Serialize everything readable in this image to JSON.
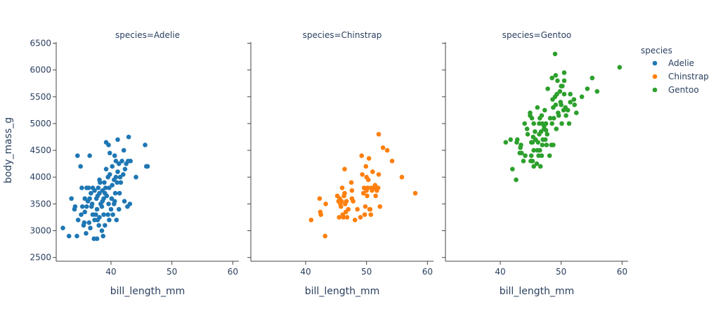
{
  "chart_data": {
    "type": "scatter",
    "facet_by": "species",
    "xlabel": "bill_length_mm",
    "ylabel": "body_mass_g",
    "xlim": [
      31,
      61
    ],
    "ylim": [
      2430,
      6520
    ],
    "xticks": [
      40,
      50,
      60
    ],
    "yticks": [
      2500,
      3000,
      3500,
      4000,
      4500,
      5000,
      5500,
      6000,
      6500
    ],
    "grid": false,
    "legend": {
      "title": "species",
      "placement": "right"
    },
    "panels": [
      {
        "title": "species=Adelie",
        "name": "Adelie",
        "color": "#1f77b4",
        "points": [
          [
            32.1,
            3050
          ],
          [
            33.1,
            2900
          ],
          [
            33.5,
            3600
          ],
          [
            34.0,
            3400
          ],
          [
            34.1,
            3450
          ],
          [
            34.4,
            2900
          ],
          [
            34.5,
            4400
          ],
          [
            34.6,
            3200
          ],
          [
            35.0,
            4200
          ],
          [
            35.1,
            3300
          ],
          [
            35.2,
            3800
          ],
          [
            35.3,
            3450
          ],
          [
            35.5,
            3100
          ],
          [
            35.6,
            3150
          ],
          [
            35.7,
            3350
          ],
          [
            35.7,
            3600
          ],
          [
            35.9,
            2950
          ],
          [
            36.0,
            3450
          ],
          [
            36.0,
            3800
          ],
          [
            36.2,
            3550
          ],
          [
            36.3,
            3800
          ],
          [
            36.4,
            3150
          ],
          [
            36.5,
            3600
          ],
          [
            36.5,
            4400
          ],
          [
            36.6,
            3050
          ],
          [
            36.7,
            3700
          ],
          [
            36.8,
            3450
          ],
          [
            36.9,
            3500
          ],
          [
            37.0,
            3300
          ],
          [
            37.0,
            3800
          ],
          [
            37.2,
            2850
          ],
          [
            37.3,
            3200
          ],
          [
            37.3,
            3750
          ],
          [
            37.5,
            3300
          ],
          [
            37.6,
            3600
          ],
          [
            37.7,
            2850
          ],
          [
            37.7,
            3400
          ],
          [
            37.8,
            3200
          ],
          [
            37.8,
            3650
          ],
          [
            37.9,
            3800
          ],
          [
            38.0,
            3100
          ],
          [
            38.1,
            3250
          ],
          [
            38.1,
            3700
          ],
          [
            38.1,
            3950
          ],
          [
            38.2,
            3900
          ],
          [
            38.3,
            3500
          ],
          [
            38.5,
            3000
          ],
          [
            38.5,
            3450
          ],
          [
            38.6,
            3550
          ],
          [
            38.6,
            3750
          ],
          [
            38.7,
            2900
          ],
          [
            38.8,
            3300
          ],
          [
            38.8,
            3600
          ],
          [
            38.9,
            3900
          ],
          [
            39.0,
            3100
          ],
          [
            39.0,
            3700
          ],
          [
            39.1,
            3800
          ],
          [
            39.2,
            4150
          ],
          [
            39.2,
            4650
          ],
          [
            39.3,
            3650
          ],
          [
            39.5,
            3300
          ],
          [
            39.5,
            4000
          ],
          [
            39.6,
            3500
          ],
          [
            39.6,
            4600
          ],
          [
            39.7,
            3200
          ],
          [
            39.7,
            3800
          ],
          [
            39.8,
            4450
          ],
          [
            39.8,
            4050
          ],
          [
            40.0,
            3400
          ],
          [
            40.1,
            3600
          ],
          [
            40.2,
            3850
          ],
          [
            40.2,
            4200
          ],
          [
            40.3,
            3300
          ],
          [
            40.5,
            3500
          ],
          [
            40.5,
            3950
          ],
          [
            40.6,
            3550
          ],
          [
            40.6,
            4400
          ],
          [
            40.7,
            3700
          ],
          [
            40.8,
            4000
          ],
          [
            40.8,
            4300
          ],
          [
            40.9,
            3200
          ],
          [
            41.0,
            3900
          ],
          [
            41.1,
            4100
          ],
          [
            41.1,
            4700
          ],
          [
            41.3,
            3400
          ],
          [
            41.3,
            4250
          ],
          [
            41.4,
            3700
          ],
          [
            41.5,
            4000
          ],
          [
            41.6,
            3900
          ],
          [
            41.8,
            4300
          ],
          [
            42.0,
            4050
          ],
          [
            42.1,
            4500
          ],
          [
            42.2,
            3550
          ],
          [
            42.3,
            4150
          ],
          [
            42.5,
            4250
          ],
          [
            42.7,
            3450
          ],
          [
            42.8,
            4300
          ],
          [
            42.9,
            4750
          ],
          [
            43.1,
            3500
          ],
          [
            43.2,
            4300
          ],
          [
            44.1,
            4000
          ],
          [
            45.6,
            4600
          ],
          [
            45.8,
            4200
          ],
          [
            46.0,
            4200
          ]
        ]
      },
      {
        "title": "species=Chinstrap",
        "name": "Chinstrap",
        "color": "#ff7f0e",
        "points": [
          [
            40.9,
            3200
          ],
          [
            42.3,
            3600
          ],
          [
            42.4,
            3350
          ],
          [
            42.5,
            3300
          ],
          [
            43.2,
            2900
          ],
          [
            43.3,
            3500
          ],
          [
            45.2,
            3650
          ],
          [
            45.4,
            3550
          ],
          [
            45.5,
            3250
          ],
          [
            45.6,
            3600
          ],
          [
            45.7,
            3500
          ],
          [
            45.8,
            3450
          ],
          [
            45.9,
            3550
          ],
          [
            46.0,
            3800
          ],
          [
            46.1,
            3300
          ],
          [
            46.2,
            3250
          ],
          [
            46.3,
            3650
          ],
          [
            46.4,
            3700
          ],
          [
            46.5,
            3500
          ],
          [
            46.6,
            3350
          ],
          [
            46.7,
            3550
          ],
          [
            46.8,
            3250
          ],
          [
            47.0,
            3400
          ],
          [
            47.5,
            3900
          ],
          [
            47.6,
            3600
          ],
          [
            47.6,
            3750
          ],
          [
            47.8,
            3550
          ],
          [
            48.1,
            3200
          ],
          [
            48.5,
            3400
          ],
          [
            49.0,
            3250
          ],
          [
            49.5,
            3700
          ],
          [
            49.6,
            3800
          ],
          [
            49.7,
            3300
          ],
          [
            49.8,
            3450
          ],
          [
            50.0,
            3750
          ],
          [
            50.0,
            4000
          ],
          [
            50.1,
            3650
          ],
          [
            50.2,
            3800
          ],
          [
            50.3,
            3950
          ],
          [
            50.5,
            3400
          ],
          [
            50.6,
            3400
          ],
          [
            50.7,
            3300
          ],
          [
            50.8,
            3800
          ],
          [
            50.9,
            3750
          ],
          [
            51.0,
            4100
          ],
          [
            51.3,
            3800
          ],
          [
            51.4,
            3850
          ],
          [
            51.5,
            3650
          ],
          [
            51.7,
            3750
          ],
          [
            51.9,
            3800
          ],
          [
            52.0,
            4050
          ],
          [
            52.0,
            4800
          ],
          [
            52.2,
            3450
          ],
          [
            52.7,
            4550
          ],
          [
            53.4,
            4500
          ],
          [
            54.2,
            4300
          ],
          [
            55.8,
            4000
          ],
          [
            58.0,
            3700
          ],
          [
            46.4,
            4150
          ],
          [
            49.2,
            4400
          ],
          [
            49.9,
            4200
          ],
          [
            49.3,
            4050
          ],
          [
            50.4,
            4350
          ]
        ]
      },
      {
        "title": "species=Gentoo",
        "name": "Gentoo",
        "color": "#2ca02c",
        "points": [
          [
            40.9,
            4650
          ],
          [
            41.7,
            4700
          ],
          [
            42.0,
            4150
          ],
          [
            42.6,
            3950
          ],
          [
            42.7,
            4650
          ],
          [
            42.8,
            4700
          ],
          [
            43.3,
            4550
          ],
          [
            43.5,
            4450
          ],
          [
            43.8,
            4300
          ],
          [
            44.0,
            5000
          ],
          [
            44.4,
            4900
          ],
          [
            44.5,
            4800
          ],
          [
            44.9,
            5150
          ],
          [
            45.1,
            4400
          ],
          [
            45.2,
            5100
          ],
          [
            45.3,
            4300
          ],
          [
            45.4,
            4750
          ],
          [
            45.5,
            4200
          ],
          [
            45.5,
            5000
          ],
          [
            45.7,
            4850
          ],
          [
            45.8,
            4700
          ],
          [
            46.1,
            4500
          ],
          [
            46.1,
            5300
          ],
          [
            46.2,
            4650
          ],
          [
            46.3,
            4400
          ],
          [
            46.4,
            4800
          ],
          [
            46.5,
            4500
          ],
          [
            46.5,
            5100
          ],
          [
            46.6,
            4200
          ],
          [
            46.7,
            4850
          ],
          [
            46.8,
            4400
          ],
          [
            46.9,
            5000
          ],
          [
            47.0,
            4700
          ],
          [
            47.2,
            4900
          ],
          [
            47.3,
            5250
          ],
          [
            47.4,
            4700
          ],
          [
            47.5,
            4875
          ],
          [
            47.6,
            4600
          ],
          [
            47.7,
            4800
          ],
          [
            47.8,
            5650
          ],
          [
            48.1,
            4400
          ],
          [
            48.2,
            5100
          ],
          [
            48.4,
            4600
          ],
          [
            48.5,
            5000
          ],
          [
            48.6,
            5450
          ],
          [
            48.7,
            4600
          ],
          [
            48.8,
            5100
          ],
          [
            49.0,
            5500
          ],
          [
            49.1,
            5350
          ],
          [
            49.2,
            4900
          ],
          [
            49.3,
            5550
          ],
          [
            49.4,
            5800
          ],
          [
            49.5,
            5200
          ],
          [
            49.6,
            5150
          ],
          [
            49.8,
            5600
          ],
          [
            49.9,
            5400
          ],
          [
            50.0,
            5350
          ],
          [
            50.1,
            5000
          ],
          [
            50.2,
            5700
          ],
          [
            50.4,
            5250
          ],
          [
            50.5,
            5550
          ],
          [
            50.7,
            5300
          ],
          [
            50.8,
            5150
          ],
          [
            51.1,
            5250
          ],
          [
            51.3,
            5000
          ],
          [
            51.5,
            5550
          ],
          [
            52.1,
            5450
          ],
          [
            52.2,
            5350
          ],
          [
            52.5,
            5200
          ],
          [
            53.4,
            5500
          ],
          [
            54.3,
            5650
          ],
          [
            55.1,
            5850
          ],
          [
            55.9,
            5600
          ],
          [
            59.6,
            6050
          ],
          [
            43.2,
            4450
          ],
          [
            44.1,
            4400
          ],
          [
            45.0,
            4300
          ],
          [
            45.3,
            4650
          ],
          [
            46.0,
            4250
          ],
          [
            46.8,
            5150
          ],
          [
            47.5,
            5000
          ],
          [
            48.5,
            5850
          ],
          [
            49.0,
            6300
          ],
          [
            49.1,
            5900
          ],
          [
            50.0,
            5700
          ],
          [
            50.5,
            5950
          ],
          [
            50.5,
            5800
          ],
          [
            51.5,
            5400
          ],
          [
            45.1,
            4650
          ],
          [
            43.4,
            4600
          ],
          [
            44.9,
            5200
          ],
          [
            46.4,
            5000
          ],
          [
            47.2,
            4950
          ],
          [
            48.7,
            5300
          ],
          [
            45.5,
            4500
          ],
          [
            46.9,
            4600
          ]
        ]
      }
    ]
  }
}
